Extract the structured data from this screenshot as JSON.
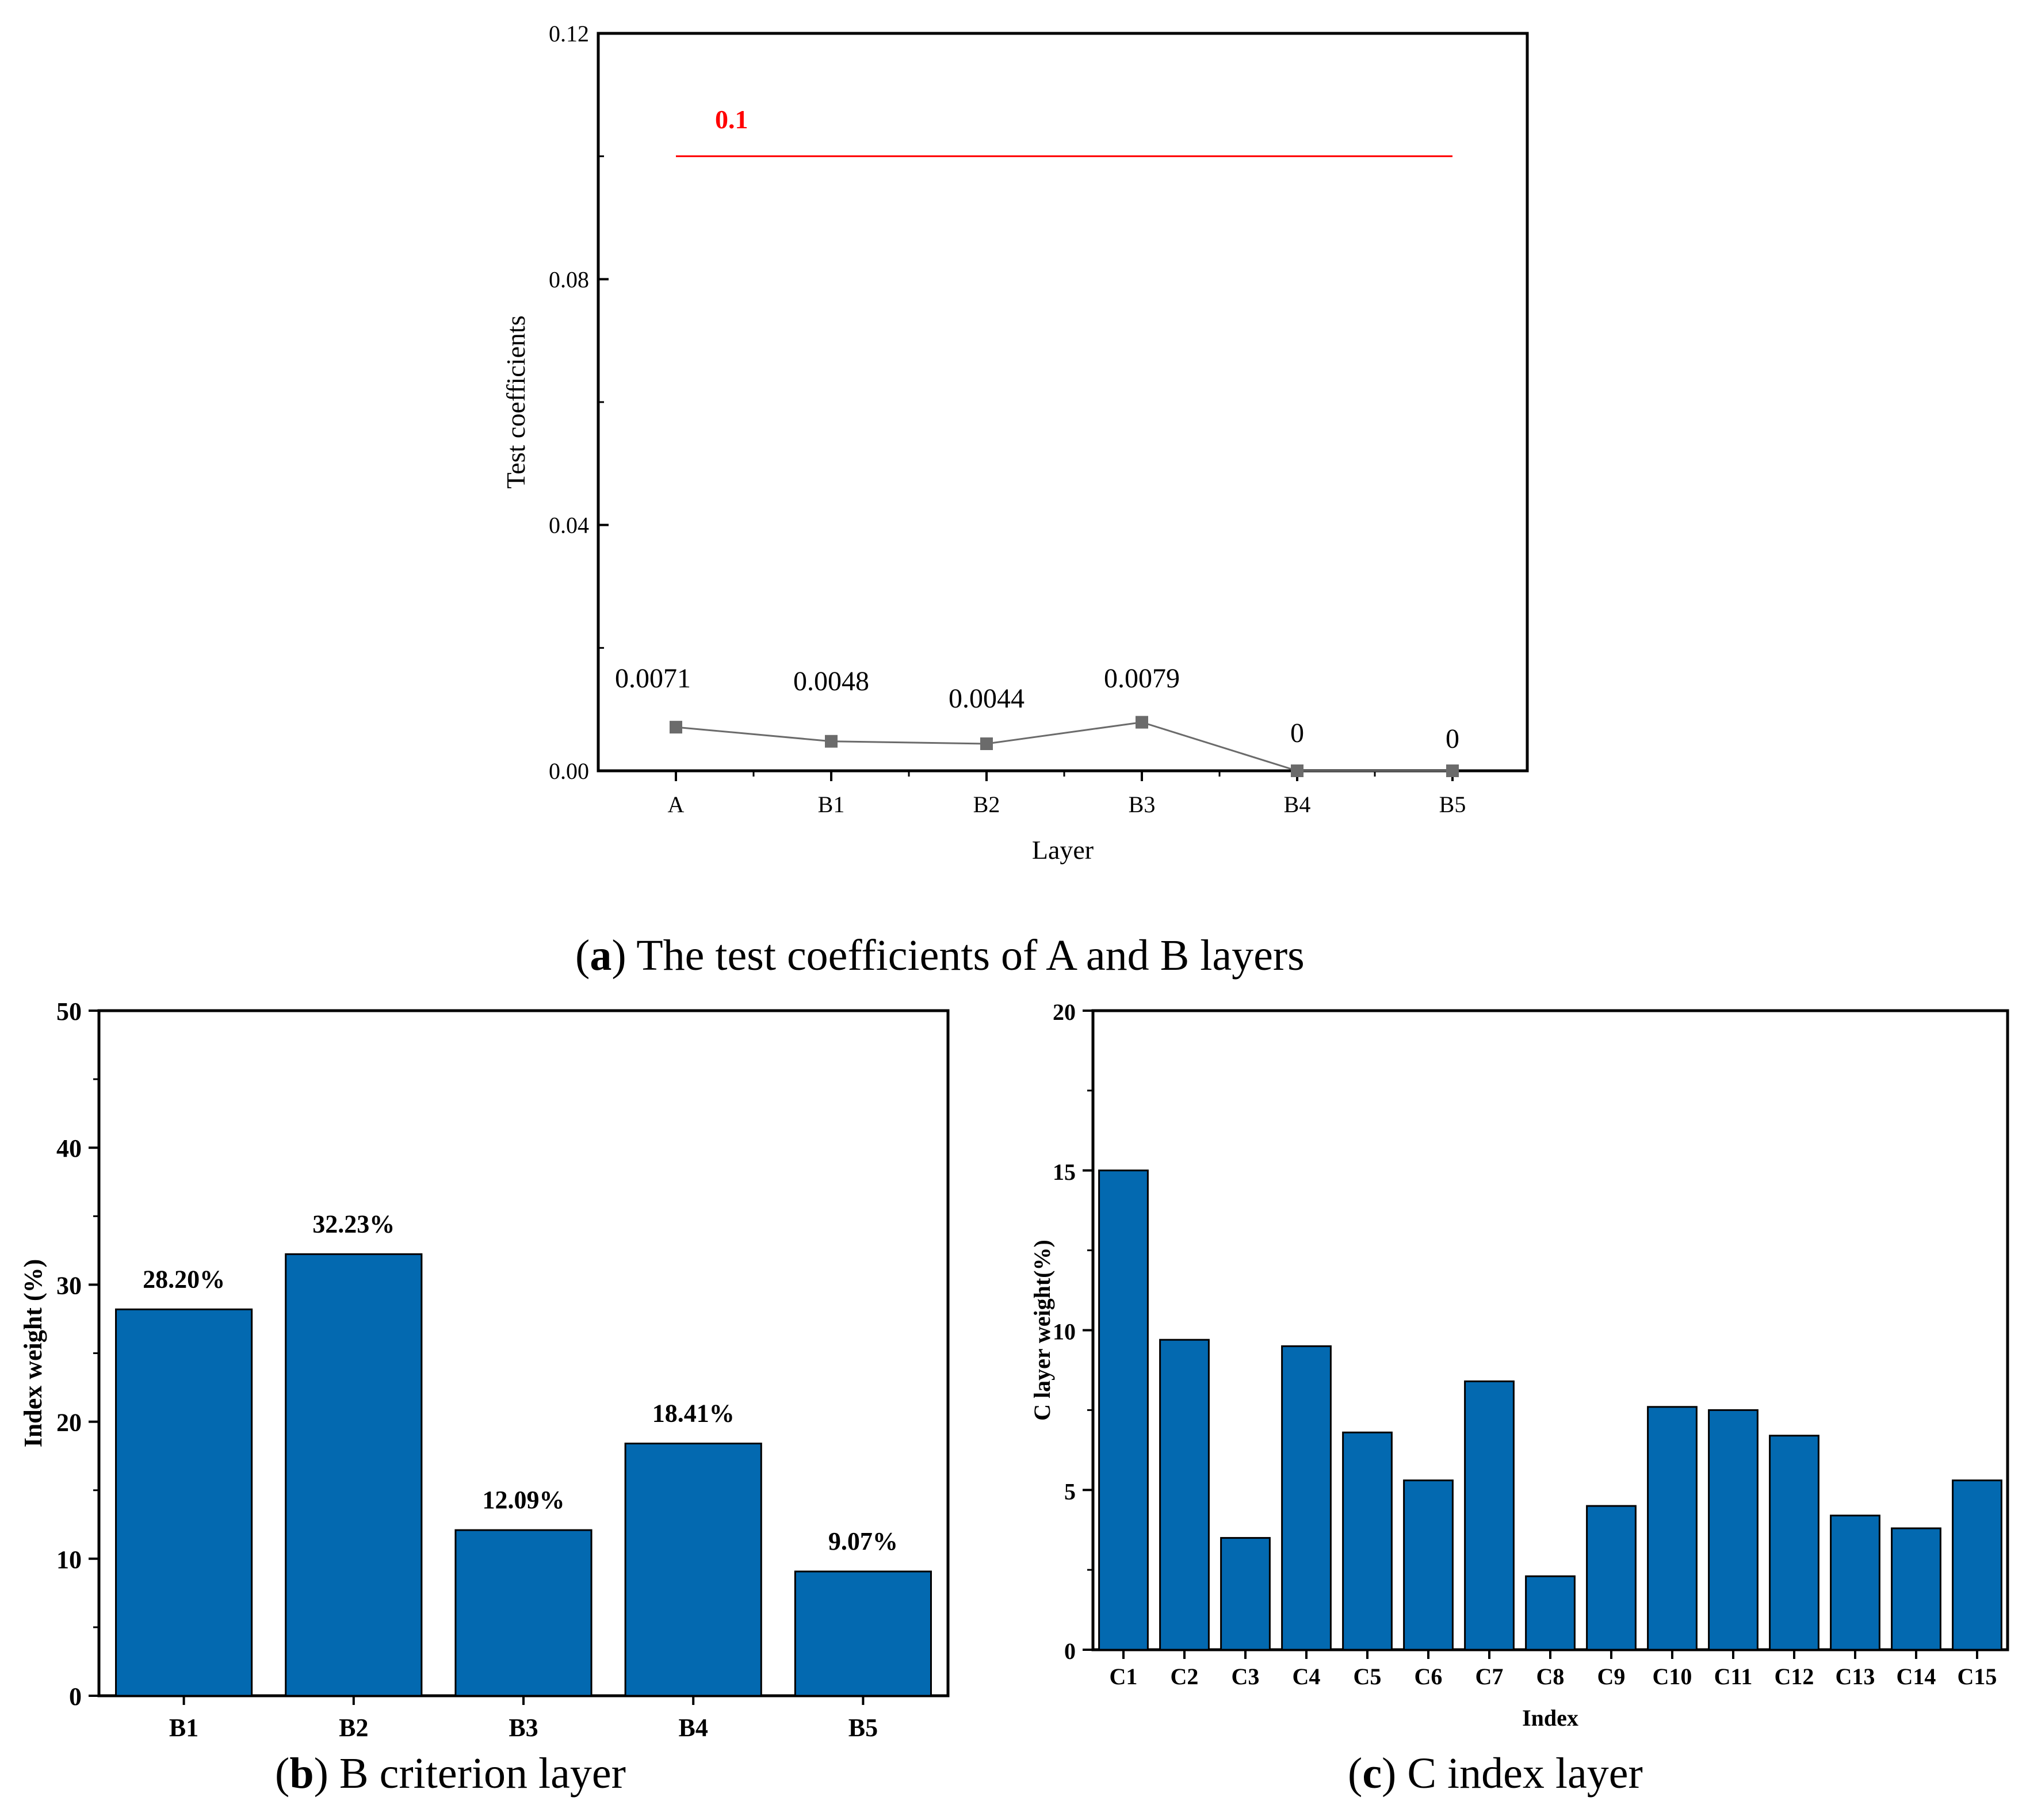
{
  "captions": {
    "a": {
      "letter": "a",
      "text": " The test coefficients of A and B layers"
    },
    "b": {
      "letter": "b",
      "text": " B criterion layer"
    },
    "c": {
      "letter": "c",
      "text": " C index layer"
    }
  },
  "colors": {
    "bar": "#0369b0",
    "threshold": "#ff0000",
    "line": "#6b6b6b"
  },
  "chart_data": [
    {
      "id": "a",
      "type": "line",
      "title": "",
      "xlabel": "Layer",
      "ylabel": "Test coefficients",
      "categories": [
        "A",
        "B1",
        "B2",
        "B3",
        "B4",
        "B5"
      ],
      "values": [
        0.0071,
        0.0048,
        0.0044,
        0.0079,
        0,
        0
      ],
      "value_labels": [
        "0.0071",
        "0.0048",
        "0.0044",
        "0.0079",
        "0",
        "0"
      ],
      "ylim": [
        0,
        0.12
      ],
      "yticks": [
        0,
        0.04,
        0.08,
        0.12
      ],
      "ytick_labels": [
        "0.00",
        "0.04",
        "0.08",
        "0.12"
      ],
      "threshold": {
        "value": 0.1,
        "label": "0.1"
      }
    },
    {
      "id": "b",
      "type": "bar",
      "xlabel": "",
      "ylabel": "Index weight (%)",
      "categories": [
        "B1",
        "B2",
        "B3",
        "B4",
        "B5"
      ],
      "values": [
        28.2,
        32.23,
        12.09,
        18.41,
        9.07
      ],
      "value_labels": [
        "28.20%",
        "32.23%",
        "12.09%",
        "18.41%",
        "9.07%"
      ],
      "ylim": [
        0,
        50
      ],
      "yticks": [
        0,
        10,
        20,
        30,
        40,
        50
      ],
      "ytick_labels": [
        "0",
        "10",
        "20",
        "30",
        "40",
        "50"
      ]
    },
    {
      "id": "c",
      "type": "bar",
      "xlabel": "Index",
      "ylabel": "C layer weight(%)",
      "categories": [
        "C1",
        "C2",
        "C3",
        "C4",
        "C5",
        "C6",
        "C7",
        "C8",
        "C9",
        "C10",
        "C11",
        "C12",
        "C13",
        "C14",
        "C15"
      ],
      "values": [
        15.0,
        9.7,
        3.5,
        9.5,
        6.8,
        5.3,
        8.4,
        2.3,
        4.5,
        7.6,
        7.5,
        6.7,
        4.2,
        3.8,
        5.3
      ],
      "ylim": [
        0,
        20
      ],
      "yticks": [
        0,
        5,
        10,
        15,
        20
      ],
      "ytick_labels": [
        "0",
        "5",
        "10",
        "15",
        "20"
      ]
    }
  ]
}
